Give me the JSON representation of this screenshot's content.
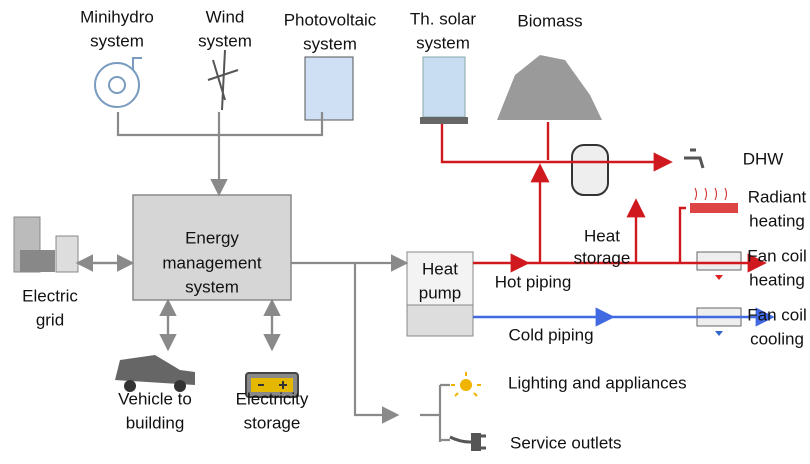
{
  "nodes": {
    "minihydro": [
      "Minihydro",
      "system"
    ],
    "wind": [
      "Wind",
      "system"
    ],
    "photovoltaic": [
      "Photovoltaic",
      "system"
    ],
    "thermal_solar": [
      "Th. solar",
      "system"
    ],
    "biomass": [
      "Biomass"
    ],
    "dhw": [
      "DHW"
    ],
    "radiant": [
      "Radiant",
      "heating"
    ],
    "heat_storage": [
      "Heat",
      "storage"
    ],
    "ems": [
      "Energy",
      "management",
      "system"
    ],
    "heat_pump": [
      "Heat",
      "pump"
    ],
    "hot_piping": [
      "Hot piping"
    ],
    "fan_coil_heating": [
      "Fan coil",
      "heating"
    ],
    "fan_coil_cooling": [
      "Fan coil",
      "cooling"
    ],
    "cold_piping": [
      "Cold piping"
    ],
    "grid": [
      "Electric",
      "grid"
    ],
    "vehicle": [
      "Vehicle to",
      "building"
    ],
    "storage": [
      "Electricity",
      "storage"
    ],
    "lighting": [
      "Lighting and appliances"
    ],
    "outlets": [
      "Service outlets"
    ]
  }
}
